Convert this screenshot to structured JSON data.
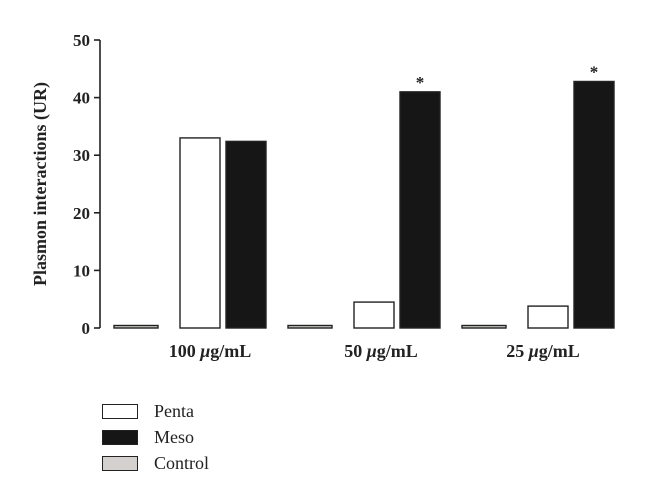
{
  "chart_data": {
    "type": "bar",
    "title": "",
    "xlabel": "",
    "ylabel": "Plasmon interactions (UR)",
    "ylim": [
      0,
      50
    ],
    "yticks": [
      0,
      10,
      20,
      30,
      40,
      50
    ],
    "grid": false,
    "legend_position": "bottom-left",
    "categories": [
      {
        "prefix": "100 ",
        "mu": "μ",
        "suffix": "g/mL"
      },
      {
        "prefix": "50 ",
        "mu": "μ",
        "suffix": "g/mL"
      },
      {
        "prefix": "25 ",
        "mu": "μ",
        "suffix": "g/mL"
      }
    ],
    "series": [
      {
        "name": "Control",
        "color": "#d3d0cd",
        "values": [
          0.3,
          0.3,
          0.3
        ]
      },
      {
        "name": "Penta",
        "color": "#ffffff",
        "values": [
          33,
          4.5,
          3.8
        ]
      },
      {
        "name": "Meso",
        "color": "#161616",
        "values": [
          32.4,
          41,
          42.8
        ],
        "annotations": [
          "",
          "*",
          "*"
        ]
      }
    ],
    "legend_order": [
      "Penta",
      "Meso",
      "Control"
    ]
  }
}
